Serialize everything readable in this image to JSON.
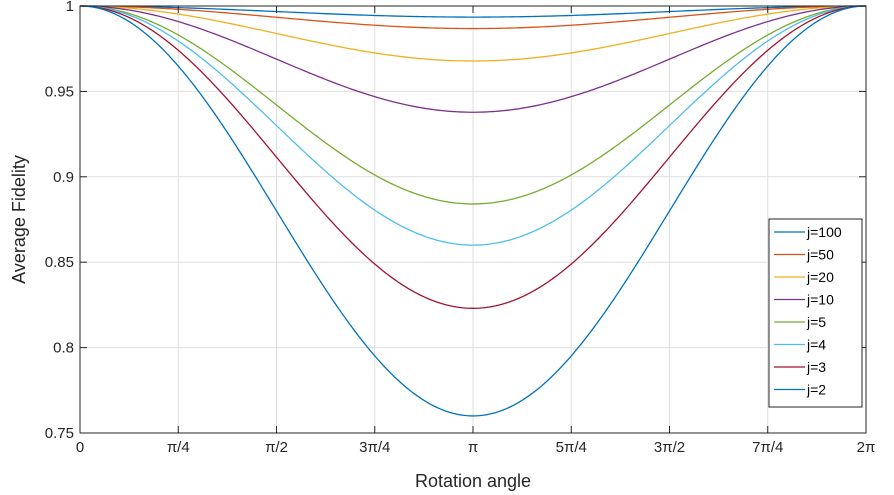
{
  "chart_data": {
    "type": "line",
    "xlabel": "Rotation angle",
    "ylabel": "Average Fidelity",
    "xlim": [
      0,
      6.283185307
    ],
    "ylim": [
      0.75,
      1
    ],
    "grid": true,
    "legend_position": "right",
    "x_ticks": [
      {
        "value": 0,
        "label": "0"
      },
      {
        "value": 0.785398,
        "label": "π/4"
      },
      {
        "value": 1.570796,
        "label": "π/2"
      },
      {
        "value": 2.356194,
        "label": "3π/4"
      },
      {
        "value": 3.141593,
        "label": "π"
      },
      {
        "value": 3.926991,
        "label": "5π/4"
      },
      {
        "value": 4.712389,
        "label": "3π/2"
      },
      {
        "value": 5.497787,
        "label": "7π/4"
      },
      {
        "value": 6.283185,
        "label": "2π"
      }
    ],
    "y_ticks": [
      {
        "value": 0.75,
        "label": "0.75"
      },
      {
        "value": 0.8,
        "label": "0.8"
      },
      {
        "value": 0.85,
        "label": "0.85"
      },
      {
        "value": 0.9,
        "label": "0.9"
      },
      {
        "value": 0.95,
        "label": "0.95"
      },
      {
        "value": 1,
        "label": "1"
      }
    ],
    "series": [
      {
        "name": "j=100",
        "color": "#0072BD",
        "min_at_pi": 0.9935
      },
      {
        "name": "j=50",
        "color": "#D95319",
        "min_at_pi": 0.9868
      },
      {
        "name": "j=20",
        "color": "#EDB120",
        "min_at_pi": 0.9678
      },
      {
        "name": "j=10",
        "color": "#7E2F8E",
        "min_at_pi": 0.9378
      },
      {
        "name": "j=5",
        "color": "#77AC30",
        "min_at_pi": 0.8841
      },
      {
        "name": "j=4",
        "color": "#4DBEEE",
        "min_at_pi": 0.86
      },
      {
        "name": "j=3",
        "color": "#A2142F",
        "min_at_pi": 0.823
      },
      {
        "name": "j=2",
        "color": "#0072BD",
        "min_at_pi": 0.76
      }
    ]
  }
}
